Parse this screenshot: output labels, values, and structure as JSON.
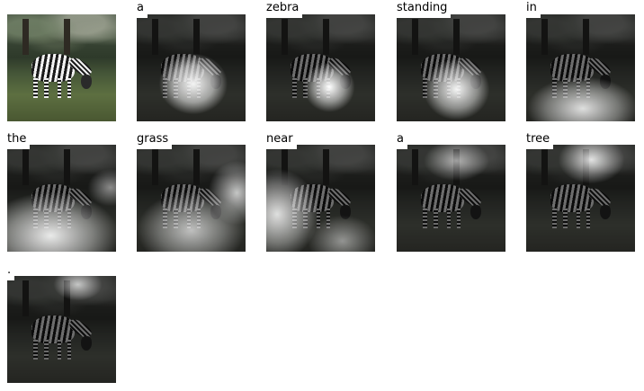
{
  "original_image": {
    "alt": "zebra grazing photo"
  },
  "words": [
    "a",
    "zebra",
    "standing",
    "in",
    "the",
    "grass",
    "near",
    "a",
    "tree",
    "."
  ],
  "colors": {
    "background": "#ffffff",
    "label_bg": "#ffffff",
    "label_text": "#000000"
  }
}
